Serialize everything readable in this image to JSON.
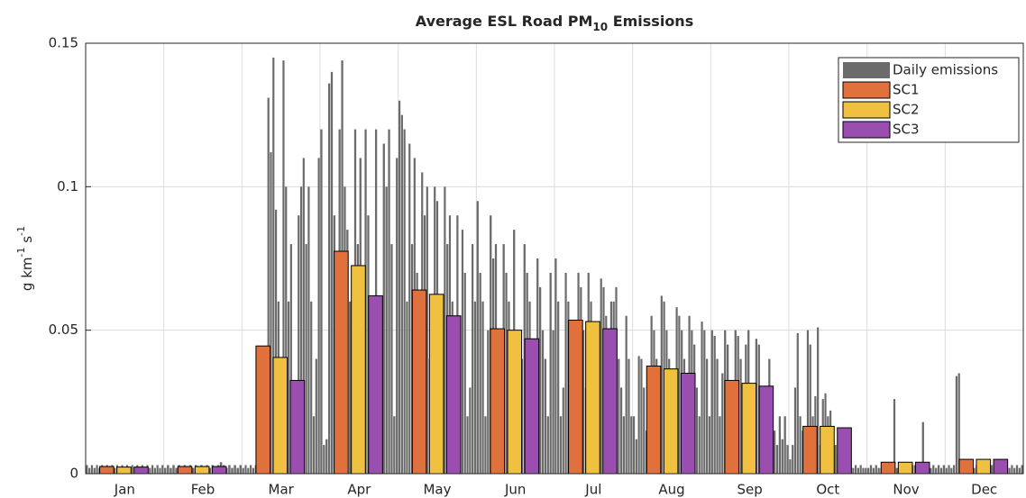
{
  "chart_data": {
    "type": "bar",
    "title": [
      "Average ESL Road PM",
      "10",
      " Emissions"
    ],
    "ylabel": [
      "g km",
      "-1",
      " s",
      "-1"
    ],
    "categories": [
      "Jan",
      "Feb",
      "Mar",
      "Apr",
      "May",
      "Jun",
      "Jul",
      "Aug",
      "Sep",
      "Oct",
      "Nov",
      "Dec"
    ],
    "ylim": [
      0,
      0.15
    ],
    "yticks": [
      0,
      0.05,
      0.1,
      0.15
    ],
    "grid": true,
    "legend": "top-right",
    "daily": {
      "name": "Daily emissions",
      "color": "#6b6b6b",
      "values": [
        [
          0.003,
          0.002,
          0.003,
          0.002,
          0.003,
          0.002,
          0.003,
          0.002,
          0.003,
          0.002,
          0.003,
          0.002,
          0.003,
          0.002,
          0.003,
          0.002,
          0.003,
          0.002,
          0.003,
          0.002,
          0.003,
          0.002,
          0.003,
          0.002,
          0.003,
          0.002,
          0.003,
          0.002,
          0.003,
          0.002,
          0.003
        ],
        [
          0.002,
          0.003,
          0.002,
          0.003,
          0.002,
          0.003,
          0.002,
          0.003,
          0.002,
          0.003,
          0.002,
          0.003,
          0.002,
          0.003,
          0.002,
          0.003,
          0.002,
          0.003,
          0.002,
          0.003,
          0.004,
          0.003,
          0.002,
          0.003,
          0.002,
          0.003,
          0.002,
          0.003
        ],
        [
          0.002,
          0.003,
          0.002,
          0.003,
          0.002,
          0.003,
          0.002,
          0.003,
          0.003,
          0.003,
          0.131,
          0.112,
          0.145,
          0.092,
          0.06,
          0.015,
          0.144,
          0.1,
          0.06,
          0.08,
          0.02,
          0.03,
          0.09,
          0.1,
          0.11,
          0.08,
          0.1,
          0.06,
          0.02,
          0.04,
          0.11
        ],
        [
          0.12,
          0.01,
          0.012,
          0.136,
          0.14,
          0.09,
          0.05,
          0.12,
          0.144,
          0.1,
          0.085,
          0.06,
          0.02,
          0.12,
          0.08,
          0.11,
          0.06,
          0.12,
          0.09,
          0.02,
          0.03,
          0.12,
          0.06,
          0.04,
          0.115,
          0.1,
          0.12,
          0.08,
          0.02,
          0.11
        ],
        [
          0.13,
          0.125,
          0.12,
          0.06,
          0.115,
          0.08,
          0.11,
          0.07,
          0.02,
          0.105,
          0.09,
          0.1,
          0.04,
          0.06,
          0.1,
          0.095,
          0.03,
          0.05,
          0.1,
          0.08,
          0.09,
          0.06,
          0.02,
          0.09,
          0.05,
          0.085,
          0.07,
          0.02,
          0.03,
          0.08,
          0.06
        ],
        [
          0.095,
          0.07,
          0.06,
          0.02,
          0.05,
          0.09,
          0.075,
          0.08,
          0.04,
          0.01,
          0.08,
          0.07,
          0.06,
          0.04,
          0.085,
          0.05,
          0.02,
          0.04,
          0.08,
          0.07,
          0.06,
          0.03,
          0.02,
          0.075,
          0.065,
          0.05,
          0.04,
          0.02,
          0.07,
          0.05
        ],
        [
          0.075,
          0.06,
          0.02,
          0.03,
          0.07,
          0.06,
          0.05,
          0.02,
          0.02,
          0.07,
          0.065,
          0.05,
          0.03,
          0.07,
          0.06,
          0.04,
          0.02,
          0.01,
          0.068,
          0.065,
          0.055,
          0.04,
          0.06,
          0.06,
          0.065,
          0.04,
          0.03,
          0.02,
          0.055,
          0.04,
          0.02
        ],
        [
          0.02,
          0.012,
          0.041,
          0.04,
          0.03,
          0.015,
          0.01,
          0.055,
          0.05,
          0.04,
          0.02,
          0.062,
          0.06,
          0.05,
          0.04,
          0.03,
          0.01,
          0.058,
          0.055,
          0.05,
          0.04,
          0.02,
          0.055,
          0.05,
          0.045,
          0.03,
          0.02,
          0.053,
          0.05,
          0.04,
          0.02
        ],
        [
          0.05,
          0.048,
          0.04,
          0.02,
          0.035,
          0.05,
          0.045,
          0.03,
          0.02,
          0.05,
          0.048,
          0.04,
          0.02,
          0.045,
          0.05,
          0.03,
          0.02,
          0.047,
          0.045,
          0.03,
          0.01,
          0.02,
          0.04,
          0.03,
          0.015,
          0.01,
          0.02,
          0.012,
          0.02,
          0.01
        ],
        [
          0.005,
          0.01,
          0.03,
          0.049,
          0.02,
          0.015,
          0.008,
          0.05,
          0.045,
          0.02,
          0.027,
          0.051,
          0.01,
          0.026,
          0.028,
          0.02,
          0.022,
          0.015,
          0.01,
          0.007,
          0.005,
          0.003,
          0.002,
          0.004,
          0.003,
          0.002,
          0.003,
          0.002,
          0.003,
          0.002,
          0.002
        ],
        [
          0.002,
          0.003,
          0.002,
          0.003,
          0.002,
          0.002,
          0.003,
          0.002,
          0.003,
          0.002,
          0.026,
          0.002,
          0.003,
          0.002,
          0.003,
          0.002,
          0.002,
          0.003,
          0.003,
          0.002,
          0.003,
          0.018,
          0.002,
          0.003,
          0.002,
          0.003,
          0.002,
          0.003,
          0.002,
          0.003
        ],
        [
          0.002,
          0.003,
          0.002,
          0.003,
          0.034,
          0.035,
          0.003,
          0.002,
          0.003,
          0.002,
          0.003,
          0.002,
          0.003,
          0.002,
          0.003,
          0.002,
          0.003,
          0.002,
          0.003,
          0.002,
          0.003,
          0.002,
          0.003,
          0.002,
          0.003,
          0.002,
          0.003,
          0.002,
          0.003,
          0.002,
          0.003
        ]
      ]
    },
    "series": [
      {
        "name": "SC1",
        "color": "#e0703c",
        "values": [
          0.0025,
          0.0025,
          0.0445,
          0.0775,
          0.064,
          0.0505,
          0.0535,
          0.0375,
          0.0325,
          0.0165,
          0.004,
          0.005
        ]
      },
      {
        "name": "SC2",
        "color": "#f0c040",
        "values": [
          0.0023,
          0.0025,
          0.0405,
          0.0725,
          0.0625,
          0.05,
          0.053,
          0.0365,
          0.0315,
          0.0165,
          0.004,
          0.005
        ]
      },
      {
        "name": "SC3",
        "color": "#9a4fb0",
        "values": [
          0.0023,
          0.0025,
          0.0325,
          0.062,
          0.055,
          0.047,
          0.0505,
          0.035,
          0.0305,
          0.016,
          0.004,
          0.005
        ]
      }
    ]
  }
}
